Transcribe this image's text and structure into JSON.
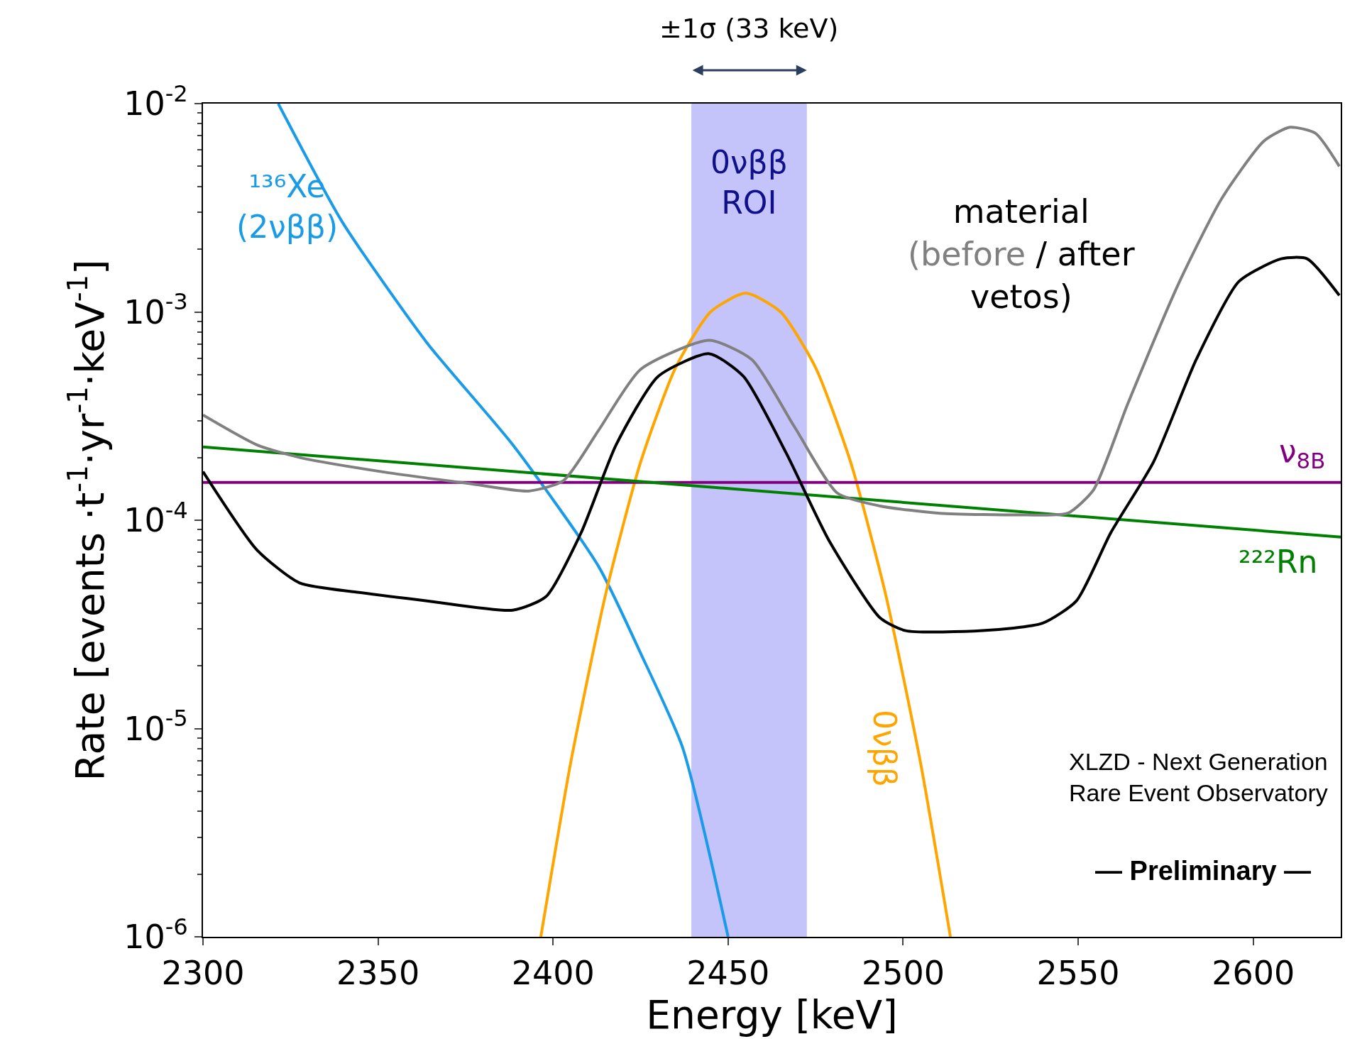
{
  "chart_data": {
    "type": "line",
    "xlabel": "Energy [keV]",
    "ylabel": "Rate [events ·t$^{-1}$·yr$^{-1}$·keV$^{-1}$]",
    "log": "y",
    "grid": false,
    "legend": false,
    "marker": "none",
    "line_style": "solid",
    "xlim": [
      2300,
      2625
    ],
    "xticks": [
      2300,
      2350,
      2400,
      2450,
      2500,
      2550,
      2600
    ],
    "ylim": [
      1e-06,
      0.01
    ],
    "yticks": [
      {
        "value": 1e-06,
        "label": "10$^{-6}$"
      },
      {
        "value": 1e-05,
        "label": "10$^{-5}$"
      },
      {
        "value": 0.0001,
        "label": "10$^{-4}$"
      },
      {
        "value": 0.001,
        "label": "10$^{-3}$"
      },
      {
        "value": 0.01,
        "label": "10$^{-2}$"
      }
    ],
    "series": [
      {
        "name": "¹³⁶Xe\n(2νββ)",
        "color": "#1a9be8",
        "x": [
          2321.5,
          2339.8,
          2364,
          2388.5,
          2413,
          2425,
          2437,
          2450
        ],
        "values": [
          0.01,
          0.0027,
          0.00071,
          0.00023,
          6e-05,
          2.3e-05,
          8.1e-06,
          1e-06
        ]
      },
      {
        "name": "0νββ",
        "color": "#ffa500",
        "x": [
          2396.5,
          2405,
          2415,
          2425,
          2435,
          2445,
          2455,
          2465,
          2475,
          2485,
          2495,
          2505,
          2513.5
        ],
        "values": [
          1e-06,
          6.8e-06,
          4.4e-05,
          0.00019,
          0.00054,
          0.001,
          0.00123,
          0.001,
          0.00054,
          0.00019,
          4.4e-05,
          6.8e-06,
          1e-06
        ]
      },
      {
        "name": "ν$_{8B}$",
        "color": "#800080",
        "x": [
          2300,
          2625
        ],
        "values": [
          0.000152,
          0.000152
        ]
      },
      {
        "name": "²²²Rn",
        "color": "#008000",
        "x": [
          2300,
          2625
        ],
        "values": [
          0.000225,
          8.3e-05
        ]
      },
      {
        "name": "(before",
        "color": "#808080",
        "x": [
          2300,
          2315.4,
          2327.6,
          2352,
          2376,
          2393,
          2403,
          2413,
          2425,
          2444.6,
          2456.8,
          2469,
          2481.2,
          2493.4,
          2510.5,
          2534.9,
          2547,
          2554.4,
          2564.1,
          2578.8,
          2591,
          2603,
          2610.5,
          2617.8,
          2624.6
        ],
        "values": [
          0.00032,
          0.00023,
          0.0002,
          0.00017,
          0.00015,
          0.000138,
          0.000155,
          0.00027,
          0.00053,
          0.00073,
          0.00059,
          0.00028,
          0.000135,
          0.000117,
          0.000108,
          0.000106,
          0.000108,
          0.00014,
          0.00036,
          0.00138,
          0.0035,
          0.0066,
          0.0077,
          0.0072,
          0.005
        ]
      },
      {
        "name": "/ after",
        "color": "#000000",
        "x": [
          2300,
          2315.4,
          2327.6,
          2344.6,
          2364,
          2388.5,
          2398,
          2408,
          2418,
          2430,
          2444.6,
          2454.4,
          2466.6,
          2478.8,
          2493.4,
          2500.7,
          2522.7,
          2539.8,
          2549.5,
          2559.3,
          2571.5,
          2583.7,
          2595.9,
          2608,
          2615.4,
          2624.6
        ],
        "values": [
          0.000171,
          7.2e-05,
          5e-05,
          4.5e-05,
          4.1e-05,
          3.7e-05,
          4.3e-05,
          8.7e-05,
          0.00023,
          0.00049,
          0.00063,
          0.00049,
          0.00021,
          8e-05,
          3.4e-05,
          2.95e-05,
          2.95e-05,
          3.2e-05,
          4.1e-05,
          8.7e-05,
          0.00019,
          0.00059,
          0.0014,
          0.0018,
          0.0018,
          0.0012
        ]
      }
    ],
    "bands": [
      {
        "axis": "x",
        "from": 2439.5,
        "to": 2472.5,
        "label": "0νββ\nROI",
        "color": "#c4c4fa"
      }
    ],
    "annotations": [
      "±1σ (33 keV)",
      "material",
      "vetos)",
      "XLZD - Next Generation\nRare Event Observatory",
      "— Preliminary —"
    ]
  }
}
